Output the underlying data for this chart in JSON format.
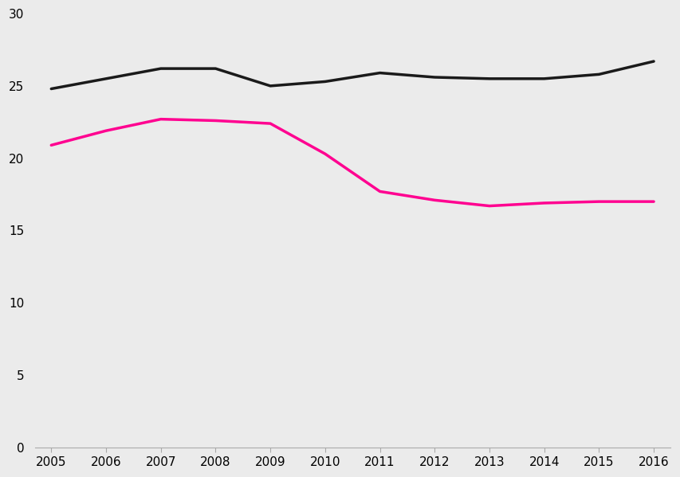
{
  "years": [
    2005,
    2006,
    2007,
    2008,
    2009,
    2010,
    2011,
    2012,
    2013,
    2014,
    2015,
    2016
  ],
  "black_line": [
    24.8,
    25.5,
    26.2,
    26.2,
    25.0,
    25.3,
    25.9,
    25.6,
    25.5,
    25.5,
    25.8,
    26.7
  ],
  "pink_line": [
    20.9,
    21.9,
    22.7,
    22.6,
    22.4,
    20.3,
    17.7,
    17.1,
    16.7,
    16.9,
    17.0,
    17.0
  ],
  "black_color": "#1a1a1a",
  "pink_color": "#ff0090",
  "background_color": "#ebebeb",
  "ylim": [
    0,
    30
  ],
  "yticks": [
    0,
    5,
    10,
    15,
    20,
    25,
    30
  ],
  "xlim_min": 2005,
  "xlim_max": 2016,
  "line_width": 2.5,
  "tick_fontsize": 11
}
